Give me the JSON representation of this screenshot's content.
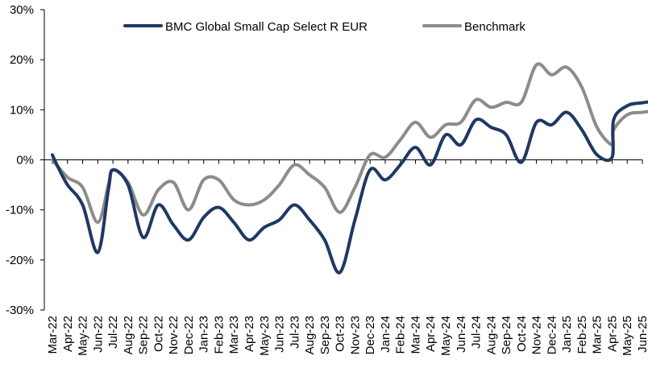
{
  "chart_data": {
    "type": "line",
    "title": "",
    "xlabel": "",
    "ylabel": "",
    "ylim": [
      -30,
      30
    ],
    "y_ticks": [
      "30%",
      "20%",
      "10%",
      "0%",
      "-10%",
      "-20%",
      "-30%"
    ],
    "y_tick_values": [
      30,
      20,
      10,
      0,
      -10,
      -20,
      -30
    ],
    "grid": false,
    "legend_position": "top-center",
    "x_tick_labels": [
      "Mar-22",
      "Apr-22",
      "May-22",
      "Jun-22",
      "Jul-22",
      "Aug-22",
      "Sep-22",
      "Oct-22",
      "Nov-22",
      "Dec-22",
      "Jan-23",
      "Feb-23",
      "Mar-23",
      "Apr-23",
      "May-23",
      "Jun-23",
      "Jul-23",
      "Aug-23",
      "Sep-23",
      "Oct-23",
      "Nov-23",
      "Dec-23",
      "Jan-24",
      "Feb-24",
      "Mar-24",
      "Apr-24",
      "May-24",
      "Jun-24",
      "Jul-24",
      "Aug-24",
      "Sep-24",
      "Oct-24",
      "Nov-24",
      "Dec-24",
      "Jan-25",
      "Feb-25",
      "Mar-25",
      "Apr-25",
      "May-25",
      "Jun-25"
    ],
    "series": [
      {
        "name": "BMC Global Small Cap Select R EUR",
        "color": "#1f3864",
        "points": [
          [
            0.0,
            1.0
          ],
          [
            0.3,
            -1.0
          ],
          [
            1.0,
            -5.0
          ],
          [
            2.0,
            -9.0
          ],
          [
            3.0,
            -18.5
          ],
          [
            3.7,
            -6.0
          ],
          [
            4.0,
            -2.0
          ],
          [
            5.0,
            -5.0
          ],
          [
            6.0,
            -15.5
          ],
          [
            7.0,
            -9.0
          ],
          [
            8.0,
            -13.0
          ],
          [
            9.0,
            -16.0
          ],
          [
            10.0,
            -11.5
          ],
          [
            11.0,
            -9.5
          ],
          [
            12.0,
            -12.5
          ],
          [
            13.0,
            -16.0
          ],
          [
            14.0,
            -13.5
          ],
          [
            15.0,
            -12.0
          ],
          [
            16.0,
            -9.0
          ],
          [
            17.0,
            -12.0
          ],
          [
            18.0,
            -16.0
          ],
          [
            19.0,
            -22.5
          ],
          [
            20.0,
            -12.0
          ],
          [
            21.0,
            -2.0
          ],
          [
            22.0,
            -4.0
          ],
          [
            23.0,
            -1.0
          ],
          [
            24.0,
            2.5
          ],
          [
            25.0,
            -1.0
          ],
          [
            26.0,
            5.0
          ],
          [
            27.0,
            3.0
          ],
          [
            28.0,
            8.0
          ],
          [
            29.0,
            6.5
          ],
          [
            30.0,
            5.0
          ],
          [
            31.0,
            -0.5
          ],
          [
            32.0,
            7.5
          ],
          [
            33.0,
            7.0
          ],
          [
            34.0,
            9.5
          ],
          [
            35.0,
            6.0
          ],
          [
            36.0,
            1.0
          ],
          [
            37.0,
            0.5
          ],
          [
            37.1,
            8.0
          ],
          [
            38.0,
            10.8
          ],
          [
            39.0,
            11.4
          ],
          [
            40.0,
            11.8
          ]
        ]
      },
      {
        "name": "Benchmark",
        "color": "#8c8c8c",
        "points": [
          [
            0.0,
            0.0
          ],
          [
            1.0,
            -3.5
          ],
          [
            2.0,
            -5.5
          ],
          [
            3.0,
            -12.5
          ],
          [
            3.7,
            -5.0
          ],
          [
            4.0,
            -2.0
          ],
          [
            5.0,
            -4.5
          ],
          [
            6.0,
            -11.0
          ],
          [
            7.0,
            -6.0
          ],
          [
            8.0,
            -4.5
          ],
          [
            9.0,
            -10.0
          ],
          [
            10.0,
            -4.0
          ],
          [
            11.0,
            -4.0
          ],
          [
            12.0,
            -8.0
          ],
          [
            13.0,
            -9.0
          ],
          [
            14.0,
            -8.0
          ],
          [
            15.0,
            -5.0
          ],
          [
            16.0,
            -1.0
          ],
          [
            17.0,
            -3.0
          ],
          [
            18.0,
            -5.5
          ],
          [
            19.0,
            -10.5
          ],
          [
            20.0,
            -5.5
          ],
          [
            21.0,
            1.0
          ],
          [
            22.0,
            0.5
          ],
          [
            23.0,
            4.0
          ],
          [
            24.0,
            7.5
          ],
          [
            25.0,
            4.5
          ],
          [
            26.0,
            7.0
          ],
          [
            27.0,
            7.5
          ],
          [
            28.0,
            12.0
          ],
          [
            29.0,
            10.5
          ],
          [
            30.0,
            11.5
          ],
          [
            31.0,
            11.5
          ],
          [
            32.0,
            19.0
          ],
          [
            33.0,
            17.0
          ],
          [
            34.0,
            18.5
          ],
          [
            35.0,
            14.5
          ],
          [
            36.0,
            6.5
          ],
          [
            37.0,
            3.0
          ],
          [
            37.1,
            6.0
          ],
          [
            38.0,
            9.0
          ],
          [
            39.0,
            9.5
          ],
          [
            40.0,
            9.8
          ]
        ]
      }
    ]
  }
}
